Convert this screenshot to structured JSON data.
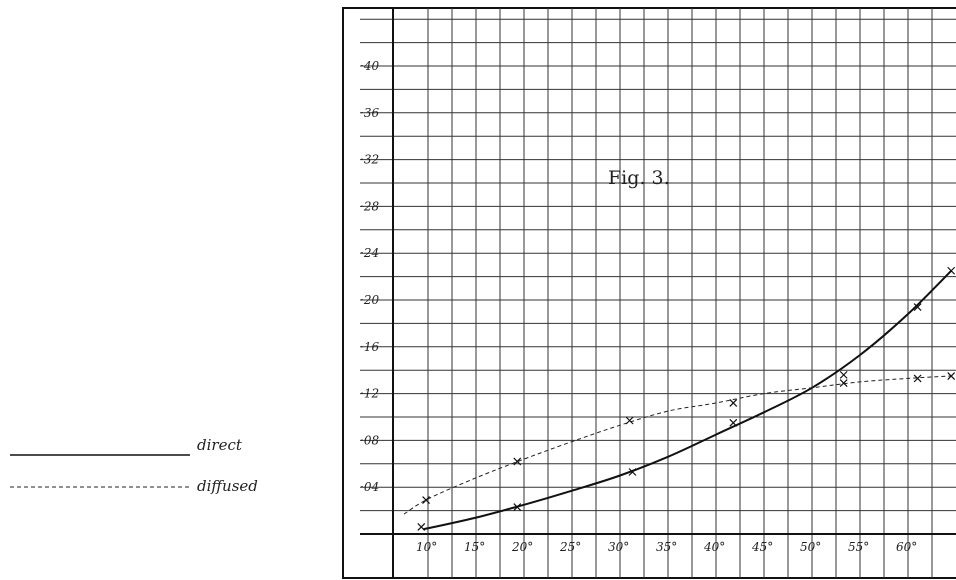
{
  "chart_data": {
    "type": "line",
    "title": "Fig. 3.",
    "xlabel": "",
    "ylabel": "",
    "xlim": [
      5,
      65
    ],
    "ylim": [
      0,
      0.44
    ],
    "x_ticks": [
      {
        "value": 10,
        "label": "10°"
      },
      {
        "value": 15,
        "label": "15°"
      },
      {
        "value": 20,
        "label": "20°"
      },
      {
        "value": 25,
        "label": "25°"
      },
      {
        "value": 30,
        "label": "30°"
      },
      {
        "value": 35,
        "label": "35°"
      },
      {
        "value": 40,
        "label": "40°"
      },
      {
        "value": 45,
        "label": "45°"
      },
      {
        "value": 50,
        "label": "50°"
      },
      {
        "value": 55,
        "label": "55°"
      },
      {
        "value": 60,
        "label": "60°"
      }
    ],
    "y_ticks": [
      {
        "value": 0.04,
        "label": "·04"
      },
      {
        "value": 0.08,
        "label": "·08"
      },
      {
        "value": 0.12,
        "label": "·12"
      },
      {
        "value": 0.16,
        "label": "·16"
      },
      {
        "value": 0.2,
        "label": "·20"
      },
      {
        "value": 0.24,
        "label": "·24"
      },
      {
        "value": 0.28,
        "label": "·28"
      },
      {
        "value": 0.32,
        "label": "·32"
      },
      {
        "value": 0.36,
        "label": "·36"
      },
      {
        "value": 0.4,
        "label": "·40"
      }
    ],
    "grid": true,
    "legend_position": "left",
    "series": [
      {
        "name": "direct",
        "style": "solid",
        "color": "#111111",
        "curve": [
          [
            9.5,
            0.004
          ],
          [
            15,
            0.014
          ],
          [
            20,
            0.025
          ],
          [
            25,
            0.037
          ],
          [
            30,
            0.05
          ],
          [
            35,
            0.066
          ],
          [
            40,
            0.085
          ],
          [
            45,
            0.104
          ],
          [
            50,
            0.125
          ],
          [
            55,
            0.153
          ],
          [
            60,
            0.188
          ],
          [
            64.5,
            0.225
          ]
        ],
        "points": [
          [
            9.3,
            0.006
          ],
          [
            19.3,
            0.023
          ],
          [
            31.3,
            0.053
          ],
          [
            41.8,
            0.095
          ],
          [
            53.3,
            0.136
          ],
          [
            61.0,
            0.194
          ],
          [
            64.5,
            0.225
          ]
        ]
      },
      {
        "name": "diffused",
        "style": "dashed",
        "color": "#222222",
        "curve": [
          [
            7.5,
            0.017
          ],
          [
            10,
            0.03
          ],
          [
            15,
            0.048
          ],
          [
            20,
            0.064
          ],
          [
            25,
            0.079
          ],
          [
            30,
            0.093
          ],
          [
            35,
            0.105
          ],
          [
            40,
            0.112
          ],
          [
            45,
            0.12
          ],
          [
            50,
            0.125
          ],
          [
            55,
            0.13
          ],
          [
            60,
            0.133
          ],
          [
            64.5,
            0.135
          ]
        ],
        "points": [
          [
            9.8,
            0.029
          ],
          [
            19.3,
            0.062
          ],
          [
            31.0,
            0.097
          ],
          [
            41.8,
            0.112
          ],
          [
            53.3,
            0.129
          ],
          [
            61.0,
            0.133
          ],
          [
            64.5,
            0.135
          ]
        ]
      }
    ]
  }
}
